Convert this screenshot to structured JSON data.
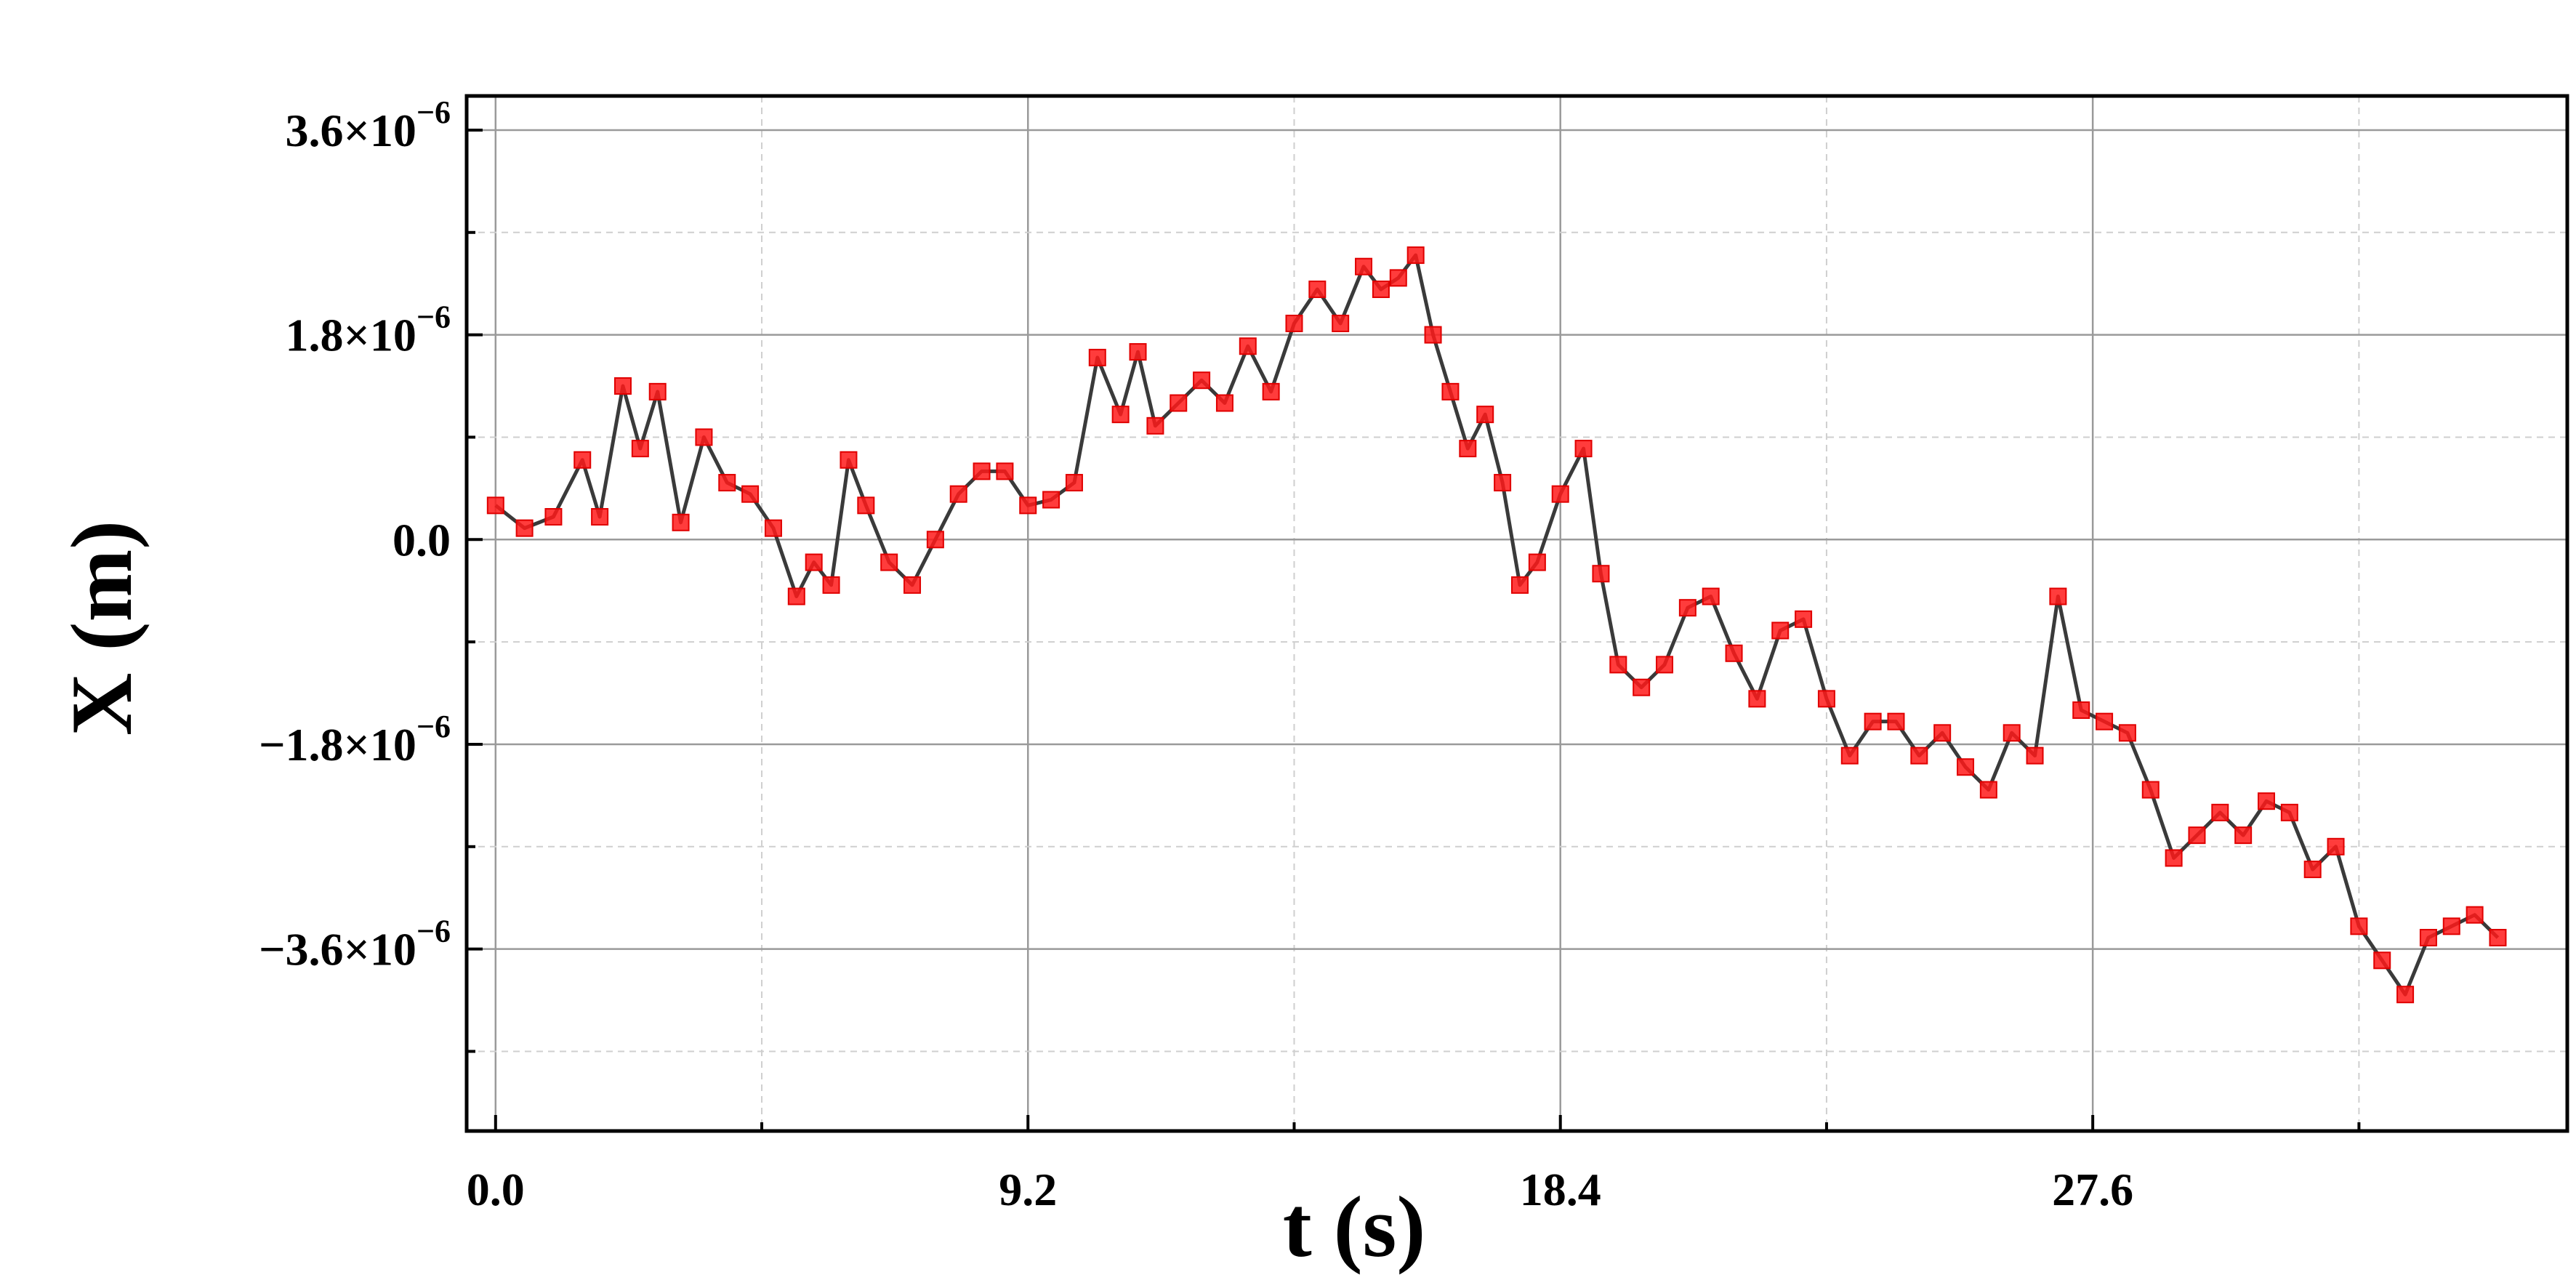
{
  "chart_data": {
    "type": "line",
    "title": "",
    "xlabel": "t (s)",
    "ylabel": "X (m)",
    "xlim": [
      -0.5,
      35.8
    ],
    "ylim": [
      -5.2e-06,
      3.9e-06
    ],
    "x_ticks": [
      0.0,
      9.2,
      18.4,
      27.6
    ],
    "x_tick_labels": [
      "0.0",
      "9.2",
      "18.4",
      "27.6"
    ],
    "x_minor_ticks": [
      4.6,
      13.8,
      23.0,
      32.2
    ],
    "y_ticks": [
      3.6e-06,
      1.8e-06,
      0.0,
      -1.8e-06,
      -3.6e-06
    ],
    "y_tick_labels": [
      {
        "mantissa": "3.6×10",
        "exponent": "−6"
      },
      {
        "mantissa": "1.8×10",
        "exponent": "−6"
      },
      {
        "mantissa": "0.0",
        "exponent": ""
      },
      {
        "mantissa": "−1.8×10",
        "exponent": "−6"
      },
      {
        "mantissa": "−3.6×10",
        "exponent": "−6"
      }
    ],
    "y_minor_ticks": [
      2.7e-06,
      9e-07,
      -9e-07,
      -2.7e-06,
      -4.5e-06
    ],
    "grid": true,
    "marker": "square",
    "line_color": "#3a3a3a",
    "marker_color": "#ff1a1a",
    "series": [
      {
        "x": [
          0.0,
          0.5,
          1.0,
          1.5,
          1.8,
          2.2,
          2.5,
          2.8,
          3.2,
          3.6,
          4.0,
          4.4,
          4.8,
          5.2,
          5.5,
          5.8,
          6.1,
          6.4,
          6.8,
          7.2,
          7.6,
          8.0,
          8.4,
          8.8,
          9.2,
          9.6,
          10.0,
          10.4,
          10.8,
          11.1,
          11.4,
          11.8,
          12.2,
          12.6,
          13.0,
          13.4,
          13.8,
          14.2,
          14.6,
          15.0,
          15.3,
          15.6,
          15.9,
          16.2,
          16.5,
          16.8,
          17.1,
          17.4,
          17.7,
          18.0,
          18.4,
          18.8,
          19.1,
          19.4,
          19.8,
          20.2,
          20.6,
          21.0,
          21.4,
          21.8,
          22.2,
          22.6,
          23.0,
          23.4,
          23.8,
          24.2,
          24.6,
          25.0,
          25.4,
          25.8,
          26.2,
          26.6,
          27.0,
          27.4,
          27.8,
          28.2,
          28.6,
          29.0,
          29.4,
          29.8,
          30.2,
          30.6,
          31.0,
          31.4,
          31.8,
          32.2,
          32.6,
          33.0,
          33.4,
          33.8,
          34.2,
          34.6
        ],
        "y": [
          3e-07,
          1e-07,
          2e-07,
          7e-07,
          2e-07,
          1.35e-06,
          8e-07,
          1.3e-06,
          1.5e-07,
          9e-07,
          5e-07,
          4e-07,
          1e-07,
          -5e-07,
          -2e-07,
          -4e-07,
          7e-07,
          3e-07,
          -2e-07,
          -4e-07,
          0.0,
          4e-07,
          6e-07,
          6e-07,
          3e-07,
          3.5e-07,
          5e-07,
          1.6e-06,
          1.1e-06,
          1.65e-06,
          1e-06,
          1.2e-06,
          1.4e-06,
          1.2e-06,
          1.7e-06,
          1.3e-06,
          1.9e-06,
          2.2e-06,
          1.9e-06,
          2.4e-06,
          2.2e-06,
          2.3e-06,
          2.5e-06,
          1.8e-06,
          1.3e-06,
          8e-07,
          1.1e-06,
          5e-07,
          -4e-07,
          -2e-07,
          4e-07,
          8e-07,
          -3e-07,
          -1.1e-06,
          -1.3e-06,
          -1.1e-06,
          -6e-07,
          -5e-07,
          -1e-06,
          -1.4e-06,
          -8e-07,
          -7e-07,
          -1.4e-06,
          -1.9e-06,
          -1.6e-06,
          -1.6e-06,
          -1.9e-06,
          -1.7e-06,
          -2e-06,
          -2.2e-06,
          -1.7e-06,
          -1.9e-06,
          -5e-07,
          -1.5e-06,
          -1.6e-06,
          -1.7e-06,
          -2.2e-06,
          -2.8e-06,
          -2.6e-06,
          -2.4e-06,
          -2.6e-06,
          -2.3e-06,
          -2.4e-06,
          -2.9e-06,
          -2.7e-06,
          -3.4e-06,
          -3.7e-06,
          -4e-06,
          -3.5e-06,
          -3.4e-06,
          -3.3e-06,
          -3.5e-06
        ]
      }
    ]
  }
}
